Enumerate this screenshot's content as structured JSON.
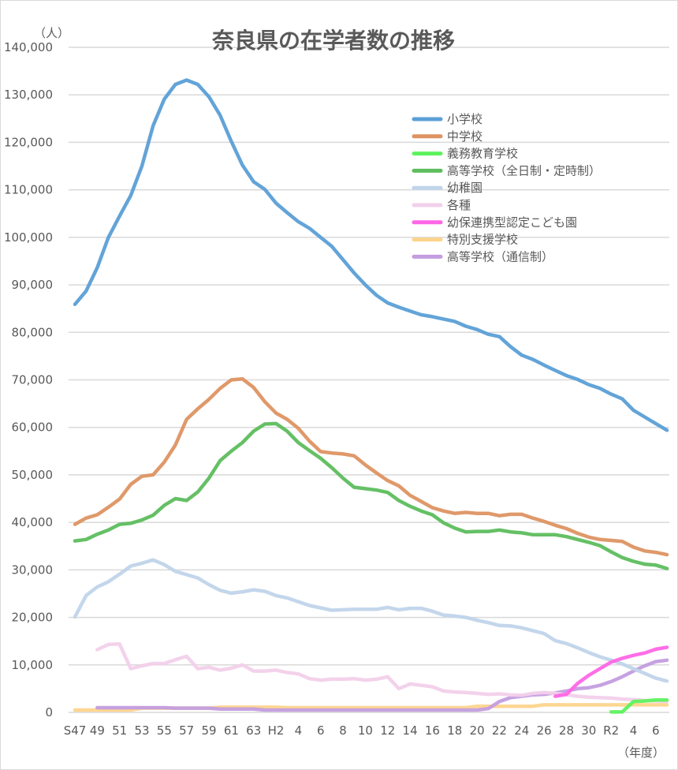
{
  "chart_data": {
    "type": "line",
    "title": "奈良県の在学者数の推移",
    "y_unit": "（人）",
    "x_unit": "（年度）",
    "ylim": [
      0,
      140000
    ],
    "y_ticks": [
      "0",
      "10,000",
      "20,000",
      "30,000",
      "40,000",
      "50,000",
      "60,000",
      "70,000",
      "80,000",
      "90,000",
      "100,000",
      "110,000",
      "120,000",
      "130,000",
      "140,000"
    ],
    "grid": true,
    "legend_position": "top-right",
    "categories": [
      "S47",
      "S48",
      "S49",
      "S50",
      "S51",
      "S52",
      "S53",
      "S54",
      "S55",
      "S56",
      "S57",
      "S58",
      "S59",
      "S60",
      "S61",
      "S62",
      "S63",
      "H1",
      "H2",
      "H3",
      "H4",
      "H5",
      "H6",
      "H7",
      "H8",
      "H9",
      "H10",
      "H11",
      "H12",
      "H13",
      "H14",
      "H15",
      "H16",
      "H17",
      "H18",
      "H19",
      "H20",
      "H21",
      "H22",
      "H23",
      "H24",
      "H25",
      "H26",
      "H27",
      "H28",
      "H29",
      "H30",
      "R1",
      "R2",
      "R3",
      "R4",
      "R5",
      "R6",
      "R7"
    ],
    "tick_labels": [
      "S47",
      "49",
      "51",
      "53",
      "55",
      "57",
      "59",
      "61",
      "63",
      "H2",
      "4",
      "6",
      "8",
      "10",
      "12",
      "14",
      "16",
      "18",
      "20",
      "22",
      "24",
      "26",
      "28",
      "30",
      "R2",
      "4",
      "6"
    ],
    "series": [
      {
        "name": "小学校",
        "color": "#5b9fd6",
        "values": [
          85900,
          88700,
          93600,
          100000,
          104500,
          108800,
          115000,
          123500,
          129100,
          132200,
          133100,
          132200,
          129600,
          125700,
          120200,
          115200,
          111700,
          110100,
          107200,
          105200,
          103300,
          101900,
          100000,
          98100,
          95300,
          92500,
          90000,
          87800,
          86200,
          85300,
          84500,
          83700,
          83300,
          82800,
          82300,
          81300,
          80600,
          79600,
          79100,
          77000,
          75200,
          74300,
          73100,
          72000,
          70900,
          70100,
          69000,
          68200,
          67000,
          66000,
          63600,
          62200,
          60800,
          59400
        ]
      },
      {
        "name": "中学校",
        "color": "#dd9362",
        "values": [
          39600,
          40900,
          41600,
          43200,
          44900,
          48000,
          49700,
          50000,
          52700,
          56300,
          61700,
          63900,
          65900,
          68200,
          70000,
          70200,
          68400,
          65400,
          63000,
          61700,
          59800,
          57100,
          54900,
          54600,
          54400,
          54000,
          52100,
          50400,
          48800,
          47700,
          45700,
          44400,
          43100,
          42400,
          41900,
          42100,
          41900,
          41900,
          41400,
          41700,
          41700,
          40900,
          40200,
          39400,
          38700,
          37700,
          36900,
          36400,
          36200,
          36000,
          34800,
          34000,
          33700,
          33200
        ]
      },
      {
        "name": "義務教育学校",
        "color": "#5ef25e",
        "values": [
          null,
          null,
          null,
          null,
          null,
          null,
          null,
          null,
          null,
          null,
          null,
          null,
          null,
          null,
          null,
          null,
          null,
          null,
          null,
          null,
          null,
          null,
          null,
          null,
          null,
          null,
          null,
          null,
          null,
          null,
          null,
          null,
          null,
          null,
          null,
          null,
          null,
          null,
          null,
          null,
          null,
          null,
          null,
          null,
          null,
          null,
          null,
          null,
          100,
          100,
          2300,
          2400,
          2600,
          2600
        ]
      },
      {
        "name": "高等学校（全日制・定時制）",
        "color": "#5dbd5d",
        "values": [
          36100,
          36400,
          37500,
          38400,
          39600,
          39800,
          40500,
          41500,
          43600,
          45000,
          44600,
          46400,
          49300,
          53000,
          55000,
          56800,
          59200,
          60700,
          60800,
          59200,
          56800,
          55100,
          53500,
          51500,
          49300,
          47400,
          47100,
          46800,
          46300,
          44600,
          43400,
          42400,
          41600,
          39900,
          38800,
          38000,
          38100,
          38100,
          38400,
          38000,
          37800,
          37400,
          37400,
          37400,
          37000,
          36400,
          35800,
          35100,
          33800,
          32600,
          31800,
          31200,
          31000,
          30300
        ]
      },
      {
        "name": "幼稚園",
        "color": "#c0d4ea",
        "values": [
          20100,
          24600,
          26400,
          27500,
          29100,
          30800,
          31400,
          32100,
          31100,
          29700,
          29000,
          28300,
          26900,
          25700,
          25100,
          25400,
          25800,
          25500,
          24600,
          24100,
          23300,
          22500,
          22000,
          21500,
          21600,
          21700,
          21700,
          21700,
          22100,
          21600,
          21900,
          21900,
          21300,
          20500,
          20300,
          20000,
          19400,
          18900,
          18300,
          18200,
          17800,
          17200,
          16600,
          15100,
          14500,
          13600,
          12600,
          11700,
          11000,
          10200,
          9200,
          8200,
          7200,
          6600
        ]
      },
      {
        "name": "各種",
        "color": "#f2d0ea",
        "values": [
          null,
          null,
          13200,
          14300,
          14400,
          9200,
          9800,
          10300,
          10300,
          11100,
          11800,
          9200,
          9500,
          8900,
          9300,
          10000,
          8700,
          8700,
          8900,
          8400,
          8100,
          7100,
          6800,
          7000,
          7000,
          7100,
          6800,
          7000,
          7500,
          5000,
          6000,
          5700,
          5400,
          4500,
          4300,
          4200,
          4000,
          3800,
          3900,
          3700,
          3600,
          4000,
          4200,
          4000,
          3700,
          3400,
          3200,
          3100,
          3000,
          2800,
          2700,
          2500,
          2400,
          2300
        ]
      },
      {
        "name": "幼保連携型認定こども園",
        "color": "#ff66e6",
        "values": [
          null,
          null,
          null,
          null,
          null,
          null,
          null,
          null,
          null,
          null,
          null,
          null,
          null,
          null,
          null,
          null,
          null,
          null,
          null,
          null,
          null,
          null,
          null,
          null,
          null,
          null,
          null,
          null,
          null,
          null,
          null,
          null,
          null,
          null,
          null,
          null,
          null,
          null,
          null,
          null,
          null,
          null,
          null,
          3400,
          3800,
          6100,
          7800,
          9200,
          10600,
          11400,
          12000,
          12500,
          13300,
          13700
        ]
      },
      {
        "name": "特別支援学校",
        "color": "#fdd48c",
        "values": [
          500,
          500,
          500,
          500,
          500,
          500,
          900,
          900,
          900,
          900,
          900,
          900,
          900,
          1100,
          1100,
          1100,
          1100,
          1100,
          1100,
          1000,
          1000,
          1000,
          1000,
          1000,
          1000,
          1000,
          1000,
          1000,
          1000,
          1000,
          1000,
          1000,
          1000,
          1000,
          1000,
          1000,
          1300,
          1300,
          1300,
          1300,
          1300,
          1300,
          1600,
          1600,
          1600,
          1600,
          1600,
          1600,
          1600,
          1600,
          1600,
          1600,
          1600,
          1600
        ]
      },
      {
        "name": "高等学校（通信制）",
        "color": "#c39ddf",
        "values": [
          null,
          null,
          1000,
          1000,
          1000,
          1000,
          1000,
          1000,
          1000,
          900,
          900,
          900,
          900,
          700,
          700,
          700,
          700,
          500,
          500,
          500,
          500,
          500,
          500,
          500,
          500,
          500,
          500,
          500,
          500,
          500,
          500,
          500,
          500,
          500,
          500,
          500,
          500,
          800,
          2300,
          3100,
          3400,
          3700,
          3800,
          4100,
          4500,
          5000,
          5200,
          5700,
          6500,
          7500,
          8700,
          9800,
          10700,
          11000
        ]
      }
    ]
  }
}
